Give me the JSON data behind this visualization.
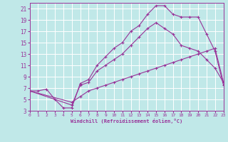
{
  "xlabel": "Windchill (Refroidissement éolien,°C)",
  "xlim": [
    0,
    23
  ],
  "ylim": [
    3,
    22
  ],
  "xtick_labels": [
    "0",
    "1",
    "2",
    "3",
    "4",
    "5",
    "6",
    "7",
    "8",
    "9",
    "10",
    "11",
    "12",
    "13",
    "14",
    "15",
    "16",
    "17",
    "18",
    "19",
    "20",
    "21",
    "22",
    "23"
  ],
  "ytick_labels": [
    "3",
    "5",
    "7",
    "9",
    "11",
    "13",
    "15",
    "17",
    "19",
    "21"
  ],
  "xticks": [
    0,
    1,
    2,
    3,
    4,
    5,
    6,
    7,
    8,
    9,
    10,
    11,
    12,
    13,
    14,
    15,
    16,
    17,
    18,
    19,
    20,
    21,
    22,
    23
  ],
  "yticks": [
    3,
    5,
    7,
    9,
    11,
    13,
    15,
    17,
    19,
    21
  ],
  "bg_color": "#c0e8e8",
  "line_color": "#993399",
  "grid_color": "#aadddd",
  "curve1_x": [
    0,
    1,
    2,
    3,
    4,
    5,
    6,
    7,
    8,
    9,
    10,
    11,
    12,
    13,
    14,
    15,
    16,
    17,
    18,
    19,
    20,
    21,
    22,
    23
  ],
  "curve1_y": [
    6.5,
    6.5,
    6.8,
    5.0,
    3.5,
    3.5,
    7.8,
    8.5,
    11.0,
    12.5,
    14.0,
    15.0,
    17.0,
    18.0,
    20.0,
    21.5,
    21.5,
    20.0,
    19.5,
    19.5,
    19.5,
    16.5,
    13.5,
    7.5
  ],
  "curve2_x": [
    0,
    5,
    6,
    7,
    8,
    9,
    10,
    11,
    12,
    13,
    14,
    15,
    16,
    17,
    18,
    19,
    20,
    21,
    22,
    23
  ],
  "curve2_y": [
    6.5,
    4.0,
    7.5,
    8.0,
    10.0,
    11.0,
    12.0,
    13.0,
    14.5,
    16.0,
    17.5,
    18.5,
    17.5,
    16.5,
    14.5,
    14.0,
    13.5,
    12.0,
    10.5,
    8.0
  ],
  "curve3_x": [
    0,
    5,
    6,
    7,
    8,
    9,
    10,
    11,
    12,
    13,
    14,
    15,
    16,
    17,
    18,
    19,
    20,
    21,
    22,
    23
  ],
  "curve3_y": [
    6.5,
    4.5,
    5.5,
    6.5,
    7.0,
    7.5,
    8.0,
    8.5,
    9.0,
    9.5,
    10.0,
    10.5,
    11.0,
    11.5,
    12.0,
    12.5,
    13.0,
    13.5,
    14.0,
    8.0
  ]
}
